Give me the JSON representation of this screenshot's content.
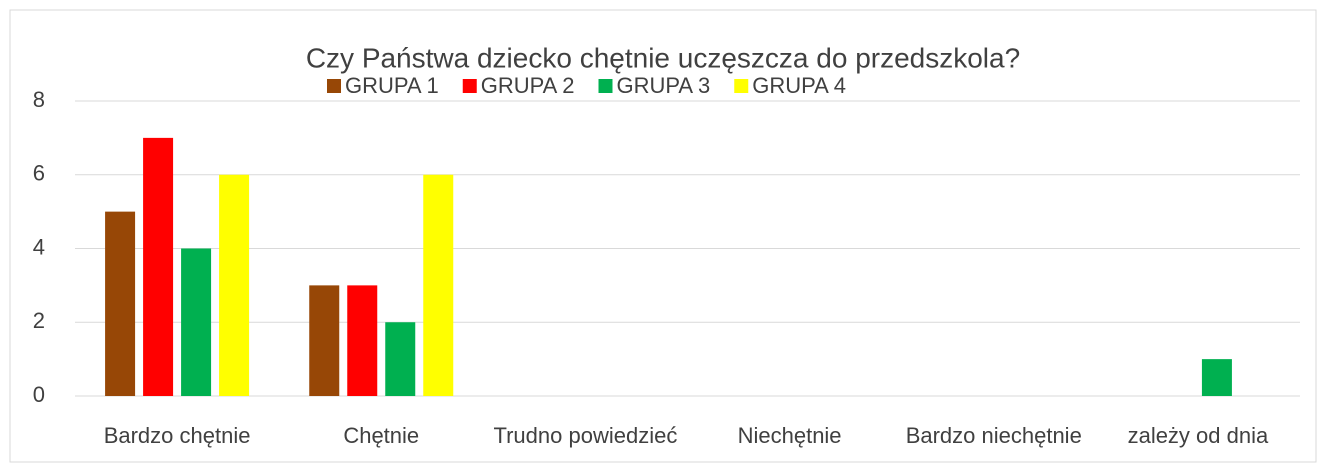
{
  "chart_data": {
    "type": "bar",
    "title": "Czy Państwa dziecko chętnie uczęszcza do przedszkola?",
    "categories": [
      "Bardzo chętnie",
      "Chętnie",
      "Trudno powiedzieć",
      "Niechętnie",
      "Bardzo niechętnie",
      "zależy od dnia"
    ],
    "series": [
      {
        "name": "GRUPA 1",
        "color": "#974706",
        "values": [
          5,
          3,
          0,
          0,
          0,
          0
        ]
      },
      {
        "name": "GRUPA 2",
        "color": "#ff0000",
        "values": [
          7,
          3,
          0,
          0,
          0,
          0
        ]
      },
      {
        "name": "GRUPA 3",
        "color": "#00b050",
        "values": [
          4,
          2,
          0,
          0,
          0,
          1
        ]
      },
      {
        "name": "GRUPA 4",
        "color": "#ffff00",
        "values": [
          6,
          6,
          0,
          0,
          0,
          0
        ]
      }
    ],
    "ylim": [
      0,
      8
    ],
    "yticks": [
      0,
      2,
      4,
      6,
      8
    ],
    "grid": true,
    "legend": "top"
  }
}
